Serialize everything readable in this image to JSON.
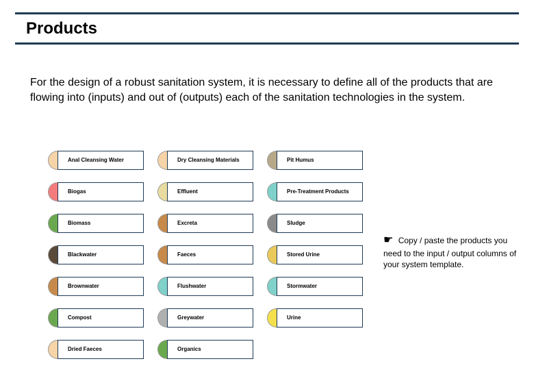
{
  "title": "Products",
  "intro": "For the design of a robust sanitation system, it is necessary to define all of the products that are flowing into (inputs) and out of (outputs) each of the sanitation technologies in the system.",
  "note_icon": "☛",
  "note": "Copy / paste the products you need to the input / output columns of your system template.",
  "colors": {
    "rule": "#1f3a54",
    "text": "#000000",
    "box_border": "#1f3a54"
  },
  "products": [
    {
      "label": "Anal Cleansing Water",
      "color": "#f6d4a8"
    },
    {
      "label": "Dry Cleansing Materials",
      "color": "#f6d4a8"
    },
    {
      "label": "Pit Humus",
      "color": "#b8a88a"
    },
    {
      "label": "Biogas",
      "color": "#f47c7c"
    },
    {
      "label": "Effluent",
      "color": "#e8dca0"
    },
    {
      "label": "Pre-Treatment Products",
      "color": "#7fd1c9"
    },
    {
      "label": "Biomass",
      "color": "#6aa84f"
    },
    {
      "label": "Excreta",
      "color": "#c78a4a"
    },
    {
      "label": "Sludge",
      "color": "#8a8a8a"
    },
    {
      "label": "Blackwater",
      "color": "#5a4a3a"
    },
    {
      "label": "Faeces",
      "color": "#c78a4a"
    },
    {
      "label": "Stored Urine",
      "color": "#e8c95a"
    },
    {
      "label": "Brownwater",
      "color": "#c78a4a"
    },
    {
      "label": "Flushwater",
      "color": "#7fd1c9"
    },
    {
      "label": "Stormwater",
      "color": "#7fd1c9"
    },
    {
      "label": "Compost",
      "color": "#6aa84f"
    },
    {
      "label": "Greywater",
      "color": "#b0b0b0"
    },
    {
      "label": "Urine",
      "color": "#f4e04d"
    },
    {
      "label": "Dried Faeces",
      "color": "#f6d4a8"
    },
    {
      "label": "Organics",
      "color": "#6aa84f"
    }
  ],
  "grid": {
    "columns": 3
  }
}
